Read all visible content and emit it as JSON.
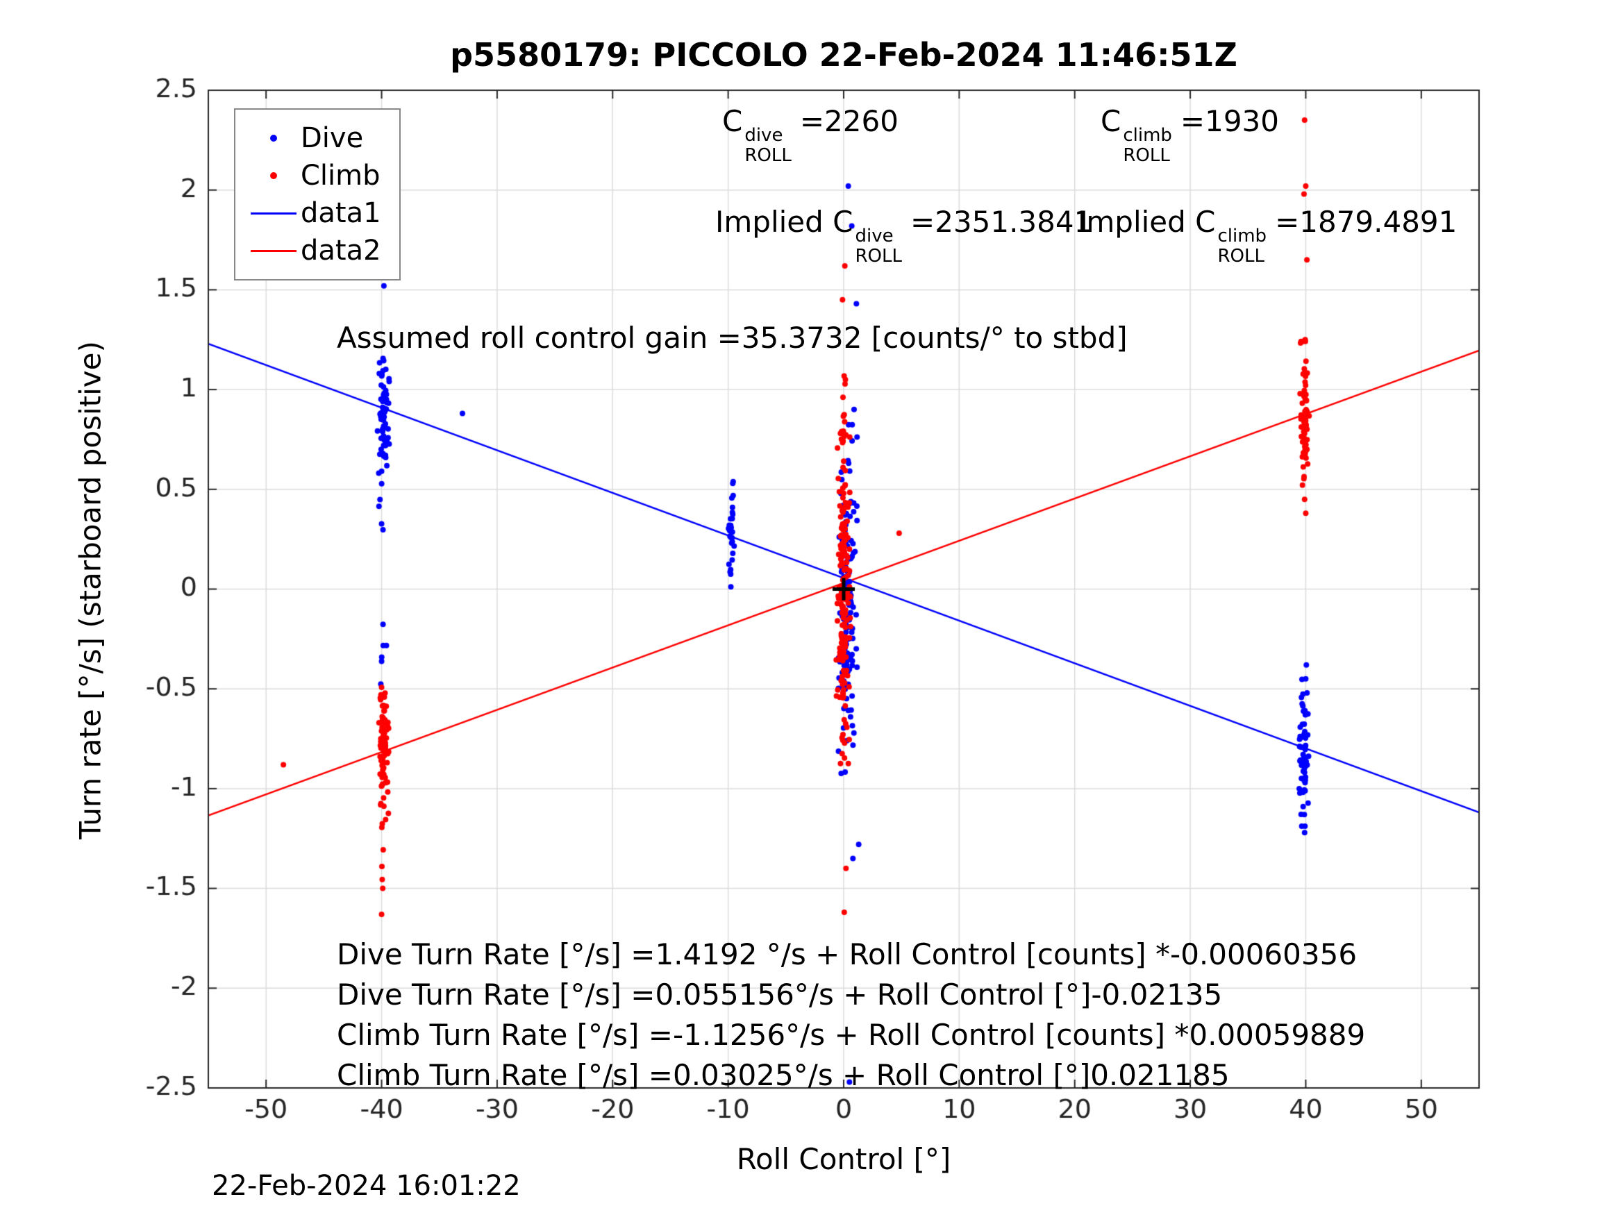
{
  "figure": {
    "title": "p5580179: PICCOLO 22-Feb-2024 11:46:51Z",
    "timestamp": "22-Feb-2024 16:01:22"
  },
  "legend": {
    "items": [
      {
        "label": "Dive",
        "type": "marker",
        "color": "#0000ff"
      },
      {
        "label": "Climb",
        "type": "marker",
        "color": "#ff0000"
      },
      {
        "label": "data1",
        "type": "line",
        "color": "#0000ff"
      },
      {
        "label": "data2",
        "type": "line",
        "color": "#ff0000"
      }
    ]
  },
  "annotations": {
    "c_dive": {
      "prefix": "",
      "base": "C",
      "sup": "dive",
      "sub": "ROLL",
      "value": "=2260"
    },
    "c_climb": {
      "prefix": "",
      "base": "C",
      "sup": "climb",
      "sub": "ROLL",
      "value": "=1930"
    },
    "implied_dive": {
      "prefix": "Implied ",
      "base": "C",
      "sup": "dive",
      "sub": "ROLL",
      "value": "=2351.3841"
    },
    "implied_climb": {
      "prefix": "Implied ",
      "base": "C",
      "sup": "climb",
      "sub": "ROLL",
      "value": "=1879.4891"
    },
    "gain": "Assumed roll control gain =35.3732 [counts/° to stbd]",
    "fit_lines": [
      "Dive Turn Rate [°/s] =1.4192 °/s + Roll Control [counts] *-0.00060356",
      "Dive Turn Rate [°/s] =0.055156°/s + Roll Control [°]-0.02135",
      "Climb Turn Rate [°/s] =-1.1256°/s + Roll Control [counts] *0.00059889",
      "Climb Turn Rate [°/s] =0.03025°/s + Roll Control [°]0.021185"
    ]
  },
  "chart_data": {
    "type": "scatter",
    "title": "p5580179: PICCOLO 22-Feb-2024 11:46:51Z",
    "xlabel": "Roll Control [°]",
    "ylabel": "Turn rate [°/s] (starboard positive)",
    "xlim": [
      -55,
      55
    ],
    "ylim": [
      -2.5,
      2.5
    ],
    "xticks": [
      -50,
      -40,
      -30,
      -20,
      -10,
      0,
      10,
      20,
      30,
      40,
      50
    ],
    "xtick_labels": [
      "-50",
      "-40",
      "-30",
      "-20",
      "-10",
      "0",
      "10",
      "20",
      "30",
      "40",
      "50"
    ],
    "yticks": [
      -2.5,
      -2,
      -1.5,
      -1,
      -0.5,
      0,
      0.5,
      1,
      1.5,
      2,
      2.5
    ],
    "ytick_labels": [
      "-2.5",
      "-2",
      "-1.5",
      "-1",
      "-0.5",
      "0",
      "0.5",
      "1",
      "1.5",
      "2",
      "2.5"
    ],
    "grid": true,
    "grid_color": "#dcdcdc",
    "axis_color": "#262626",
    "series": [
      {
        "name": "Dive",
        "color": "#0000ff",
        "marker": "dot",
        "clusters": [
          {
            "cx": -39.85,
            "cy": 0.88,
            "sx": 0.22,
            "sy": 0.13,
            "n": 75
          },
          {
            "cx": -39.9,
            "cy": 0.4,
            "sx": 0.18,
            "sy": 0.09,
            "n": 6
          },
          {
            "cx": -39.9,
            "cy": -0.3,
            "sx": 0.18,
            "sy": 0.15,
            "n": 6
          },
          {
            "cx": -9.7,
            "cy": 0.28,
            "sx": 0.12,
            "sy": 0.13,
            "n": 28
          },
          {
            "cx": 0.35,
            "cy": -0.05,
            "sx": 0.35,
            "sy": 0.38,
            "n": 150
          },
          {
            "cx": 39.85,
            "cy": -0.82,
            "sx": 0.18,
            "sy": 0.16,
            "n": 65
          }
        ],
        "points": [
          [
            -39.8,
            1.52
          ],
          [
            -40.2,
            1.08
          ],
          [
            -33,
            0.88
          ],
          [
            -9.6,
            0.53
          ],
          [
            0.4,
            2.02
          ],
          [
            0.7,
            1.82
          ],
          [
            1.1,
            1.43
          ],
          [
            0.9,
            0.9
          ],
          [
            0.5,
            -2.47
          ],
          [
            0.8,
            -1.35
          ],
          [
            1.3,
            -1.28
          ],
          [
            39.9,
            -1.22
          ],
          [
            40.05,
            -0.38
          ],
          [
            40.0,
            -0.45
          ]
        ]
      },
      {
        "name": "Climb",
        "color": "#ff0000",
        "marker": "dot",
        "clusters": [
          {
            "cx": -39.85,
            "cy": -0.8,
            "sx": 0.2,
            "sy": 0.17,
            "n": 80
          },
          {
            "cx": -39.9,
            "cy": -1.35,
            "sx": 0.12,
            "sy": 0.12,
            "n": 5
          },
          {
            "cx": 0.0,
            "cy": 0.0,
            "sx": 0.28,
            "sy": 0.38,
            "n": 160
          },
          {
            "cx": 0.1,
            "cy": 0.75,
            "sx": 0.18,
            "sy": 0.18,
            "n": 14
          },
          {
            "cx": 39.9,
            "cy": 0.85,
            "sx": 0.17,
            "sy": 0.17,
            "n": 75
          }
        ],
        "points": [
          [
            -48.5,
            -0.88
          ],
          [
            -39.9,
            -1.5
          ],
          [
            -40,
            -1.63
          ],
          [
            0.1,
            1.62
          ],
          [
            -0.1,
            1.45
          ],
          [
            0.15,
            1.05
          ],
          [
            0.2,
            -1.4
          ],
          [
            0.05,
            -1.62
          ],
          [
            4.8,
            0.28
          ],
          [
            39.9,
            2.35
          ],
          [
            40,
            2.02
          ],
          [
            39.85,
            1.98
          ],
          [
            40.1,
            1.65
          ],
          [
            39.95,
            1.25
          ],
          [
            40,
            0.38
          ],
          [
            39.9,
            0.45
          ]
        ]
      }
    ],
    "lines": [
      {
        "name": "data1",
        "color": "#0000ff",
        "slope": -0.02135,
        "intercept": 0.055156
      },
      {
        "name": "data2",
        "color": "#ff0000",
        "slope": 0.021185,
        "intercept": 0.03025
      }
    ],
    "origin_marker": {
      "x": 0,
      "y": 0,
      "shape": "plus",
      "color": "#000000"
    }
  }
}
